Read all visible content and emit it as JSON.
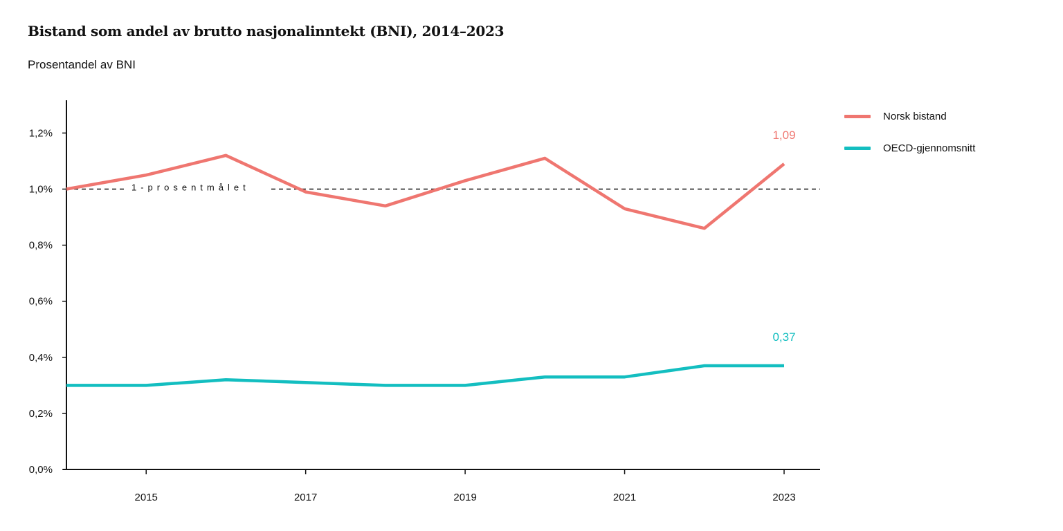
{
  "chart_data": {
    "type": "line",
    "title": "Bistand som andel av brutto nasjonalinntekt (BNI), 2014–2023",
    "subtitle": "Prosentandel av BNI",
    "x": [
      2014,
      2015,
      2016,
      2017,
      2018,
      2019,
      2020,
      2021,
      2022,
      2023
    ],
    "x_tick_labels": [
      "2015",
      "2017",
      "2019",
      "2021",
      "2023"
    ],
    "x_ticks": [
      2015,
      2017,
      2019,
      2021,
      2023
    ],
    "ylim": [
      0,
      1.3
    ],
    "y_ticks": [
      0,
      0.2,
      0.4,
      0.6,
      0.8,
      1.0,
      1.2
    ],
    "y_tick_labels": [
      "0,0%",
      "0,2%",
      "0,4%",
      "0,6%",
      "0,8%",
      "1,0%",
      "1,2%"
    ],
    "series": [
      {
        "name": "Norsk bistand",
        "color": "#ef7670",
        "values": [
          1.0,
          1.05,
          1.12,
          0.99,
          0.94,
          1.03,
          1.11,
          0.93,
          0.86,
          1.09
        ],
        "end_label": "1,09"
      },
      {
        "name": "OECD-gjennomsnitt",
        "color": "#13bec0",
        "values": [
          0.3,
          0.3,
          0.32,
          0.31,
          0.3,
          0.3,
          0.33,
          0.33,
          0.37,
          0.37
        ],
        "end_label": "0,37"
      }
    ],
    "reference_line": {
      "value": 1.0,
      "label": "1-prosentmålet"
    },
    "legend_position": "top-right",
    "grid": false
  }
}
